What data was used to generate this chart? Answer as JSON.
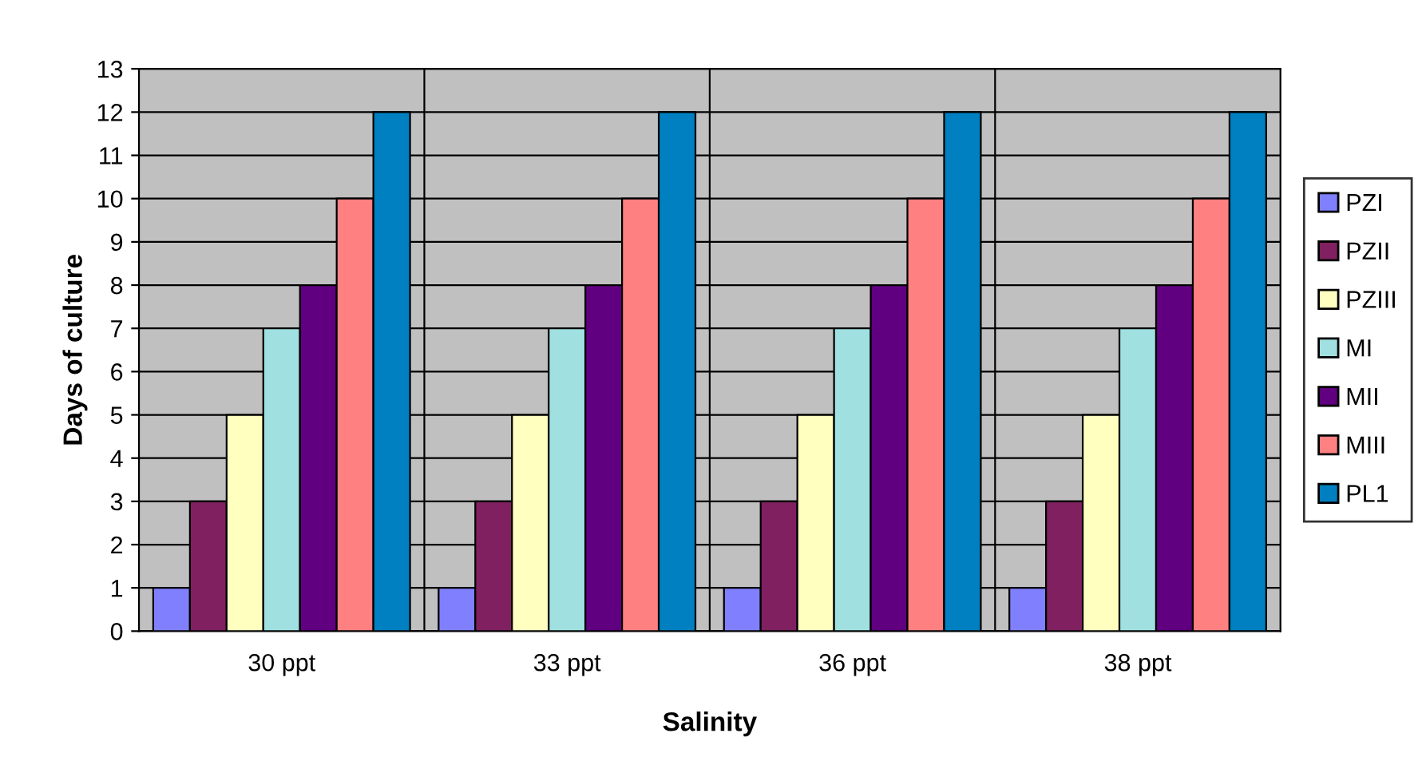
{
  "chart_data": {
    "type": "bar",
    "xlabel": "Salinity",
    "ylabel": "Days of culture",
    "categories": [
      "30 ppt",
      "33 ppt",
      "36 ppt",
      "38 ppt"
    ],
    "series": [
      {
        "name": "PZI",
        "color": "#8080ff",
        "values": [
          1,
          1,
          1,
          1
        ]
      },
      {
        "name": "PZII",
        "color": "#802060",
        "values": [
          3,
          3,
          3,
          3
        ]
      },
      {
        "name": "PZIII",
        "color": "#ffffc0",
        "values": [
          5,
          5,
          5,
          5
        ]
      },
      {
        "name": "MI",
        "color": "#a0e0e0",
        "values": [
          7,
          7,
          7,
          7
        ]
      },
      {
        "name": "MII",
        "color": "#600080",
        "values": [
          8,
          8,
          8,
          8
        ]
      },
      {
        "name": "MIII",
        "color": "#ff8080",
        "values": [
          10,
          10,
          10,
          10
        ]
      },
      {
        "name": "PL1",
        "color": "#0080c0",
        "values": [
          12,
          12,
          12,
          12
        ]
      }
    ],
    "ylim": [
      0,
      13
    ],
    "yticks": [
      0,
      1,
      2,
      3,
      4,
      5,
      6,
      7,
      8,
      9,
      10,
      11,
      12,
      13
    ],
    "grid": "y",
    "legend": "right"
  }
}
